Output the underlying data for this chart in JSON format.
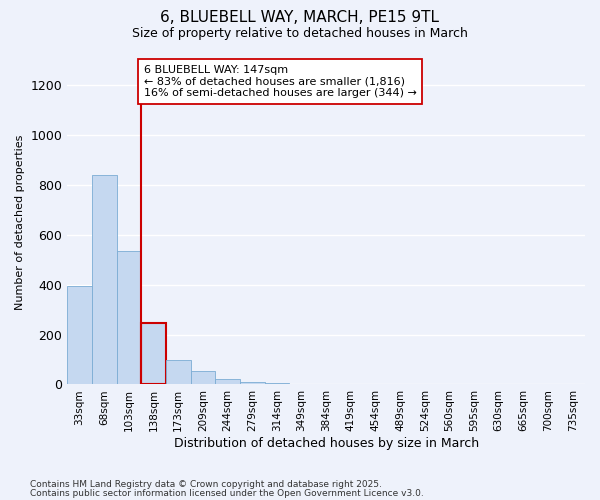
{
  "title_line1": "6, BLUEBELL WAY, MARCH, PE15 9TL",
  "title_line2": "Size of property relative to detached houses in March",
  "xlabel": "Distribution of detached houses by size in March",
  "ylabel": "Number of detached properties",
  "categories": [
    "33sqm",
    "68sqm",
    "103sqm",
    "138sqm",
    "173sqm",
    "209sqm",
    "244sqm",
    "279sqm",
    "314sqm",
    "349sqm",
    "384sqm",
    "419sqm",
    "454sqm",
    "489sqm",
    "524sqm",
    "560sqm",
    "595sqm",
    "630sqm",
    "665sqm",
    "700sqm",
    "735sqm"
  ],
  "values": [
    395,
    840,
    535,
    248,
    100,
    55,
    20,
    10,
    5,
    2,
    1,
    1,
    1,
    0,
    0,
    0,
    0,
    0,
    0,
    0,
    0
  ],
  "bar_color": "#c5d8f0",
  "bar_edge_color": "#7bacd4",
  "highlight_bar_index": 3,
  "highlight_bar_edge_color": "#cc0000",
  "vline_color": "#cc0000",
  "annotation_box_text": "6 BLUEBELL WAY: 147sqm\n← 83% of detached houses are smaller (1,816)\n16% of semi-detached houses are larger (344) →",
  "box_edge_color": "#cc0000",
  "ylim": [
    0,
    1300
  ],
  "yticks": [
    0,
    200,
    400,
    600,
    800,
    1000,
    1200
  ],
  "footnote1": "Contains HM Land Registry data © Crown copyright and database right 2025.",
  "footnote2": "Contains public sector information licensed under the Open Government Licence v3.0.",
  "bg_color": "#eef2fb",
  "plot_bg_color": "#eef2fb",
  "title_fontsize": 11,
  "subtitle_fontsize": 9,
  "ylabel_fontsize": 8,
  "xlabel_fontsize": 9
}
